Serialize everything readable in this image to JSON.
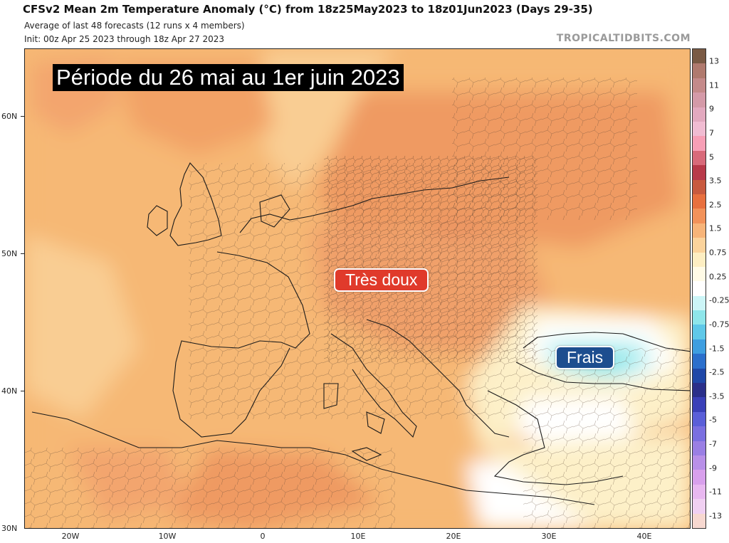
{
  "header": {
    "title": "CFSv2 Mean 2m Temperature Anomaly (°C) from 18z25May2023 to 18z01Jun2023 (Days 29-35)",
    "subtitle": "Average of last 48 forecasts (12 runs x 4 members)",
    "init": "Init: 00z Apr 25 2023 through 18z Apr 27 2023",
    "brand": "TROPICALTIDBITS.COM"
  },
  "annotations": {
    "period": "Période du 26 mai au 1er juin 2023",
    "warm": "Très doux",
    "cool": "Frais"
  },
  "map": {
    "lat_labels": [
      "60N",
      "50N",
      "40N",
      "30N"
    ],
    "lon_labels": [
      "20W",
      "10W",
      "0",
      "10E",
      "20E",
      "30E",
      "40E"
    ],
    "colors": {
      "base": "#f6b874",
      "warm_light": "#f9cd93",
      "warm_strong": "#ef9a62",
      "warm_max": "#e27f59",
      "neutral": "#fdf0c8",
      "white": "#ffffff",
      "cool": "#b8f0f2",
      "cool_strong": "#8ee6ea",
      "borders": "#5a4535"
    }
  },
  "colorbar": {
    "labels": [
      "13",
      "11",
      "9",
      "7",
      "5",
      "3.5",
      "2.5",
      "1.5",
      "0.75",
      "0.25",
      "-0.25",
      "-0.75",
      "-1.5",
      "-2.5",
      "-3.5",
      "-5",
      "-7",
      "-9",
      "-11",
      "-13"
    ],
    "colors": [
      "#7a5a44",
      "#b07a6e",
      "#c48a8a",
      "#d49aa8",
      "#e2a9bf",
      "#f0bcd2",
      "#f79fb6",
      "#d86a7a",
      "#b83a4a",
      "#c85a3f",
      "#e8703f",
      "#f2925a",
      "#f7b479",
      "#fbd39c",
      "#fdeec2",
      "#fffbe6",
      "#ffffff",
      "#ccf5f7",
      "#8ee6ea",
      "#5fc8e8",
      "#3e9ee0",
      "#2b6fcc",
      "#1f48a8",
      "#2a2f8a",
      "#3a40b8",
      "#5a5fd8",
      "#7a6fe0",
      "#9a7fe4",
      "#b890e8",
      "#d8a0ec",
      "#e8b8f0",
      "#f0d0f2",
      "#f7d8d0"
    ]
  }
}
